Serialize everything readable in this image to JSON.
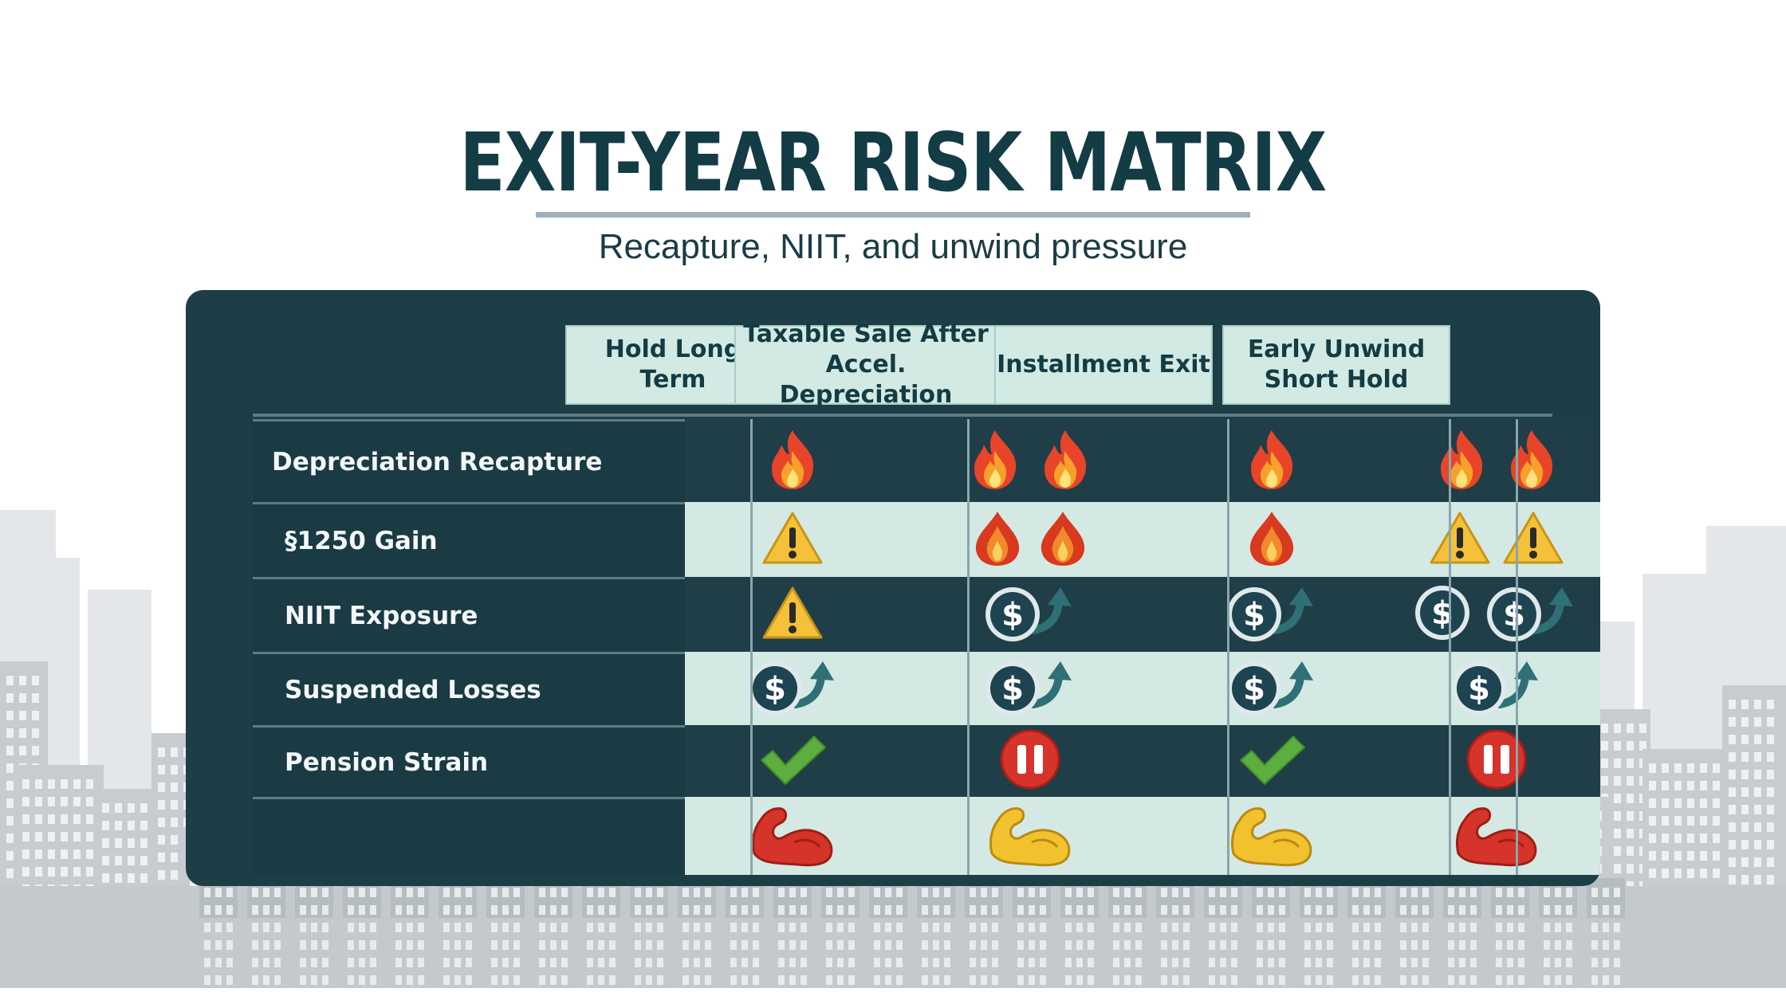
{
  "title": "EXIT-YEAR RISK MATRIX",
  "subtitle": "Recapture, NIIT, and unwind pressure",
  "columns": [
    {
      "line1": "Hold Long",
      "line2": "Term"
    },
    {
      "line1": "Taxable Sale After",
      "line2": "Accel. Depreciation"
    },
    {
      "line1": "Installment Exit",
      "line2": ""
    },
    {
      "line1": "Early Unwind",
      "line2": "Short Hold"
    }
  ],
  "rows": [
    {
      "label": "Depreciation Recapture",
      "cells": [
        [
          "fire-icon"
        ],
        [
          "fire-icon",
          "fire-icon"
        ],
        [
          "fire-icon"
        ],
        [
          "fire-icon",
          "fire-icon"
        ]
      ]
    },
    {
      "label": "§1250 Gain",
      "cells": [
        [
          "warning-icon"
        ],
        [
          "flame-drop-icon",
          "flame-drop-icon"
        ],
        [
          "flame-drop-icon"
        ],
        [
          "warning-icon",
          "warning-icon"
        ]
      ]
    },
    {
      "label": "NIIT Exposure",
      "cells": [
        [
          "warning-icon"
        ],
        [
          "dollar-up-icon"
        ],
        [
          "dollar-up-icon"
        ],
        [
          "dollar-coin-icon",
          "dollar-up-icon"
        ]
      ]
    },
    {
      "label": "Suspended Losses",
      "cells": [
        [
          "dollar-up-icon"
        ],
        [
          "dollar-up-icon"
        ],
        [
          "dollar-up-icon"
        ],
        [
          "dollar-up-icon"
        ]
      ]
    },
    {
      "label": "Pension Strain",
      "cells": [
        [
          "check-icon"
        ],
        [
          "pause-icon"
        ],
        [
          "check-icon"
        ],
        [
          "pause-icon"
        ]
      ]
    },
    {
      "label": "",
      "cells": [
        [
          "muscle-red-icon"
        ],
        [
          "muscle-yellow-icon"
        ],
        [
          "muscle-yellow-icon"
        ],
        [
          "muscle-red-icon"
        ]
      ]
    }
  ],
  "colors": {
    "panel": "#1d3d47",
    "light_row": "#d4e9e3",
    "dark_row": "#1f3e47",
    "header_cell": "#d3e9e3",
    "title": "#133c44",
    "fire": "#e8442a",
    "warning": "#f5c13a",
    "check": "#5cae3e",
    "pause": "#d6332a",
    "muscle_red": "#d6332a",
    "muscle_yellow": "#f2c12e",
    "dollar_coin": "#1d4450"
  }
}
